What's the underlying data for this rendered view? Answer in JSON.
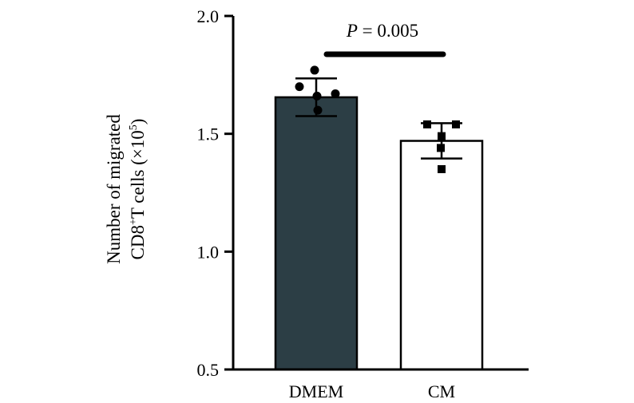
{
  "chart_data": {
    "type": "bar",
    "categories": [
      "DMEM",
      "CM"
    ],
    "values": [
      1.655,
      1.47
    ],
    "error": [
      0.08,
      0.075
    ],
    "points": [
      [
        1.77,
        1.7,
        1.67,
        1.66,
        1.6
      ],
      [
        1.54,
        1.54,
        1.49,
        1.44,
        1.35
      ]
    ],
    "point_markers": [
      "circle",
      "square"
    ],
    "colors": {
      "bar_fill": [
        "#2c3e45",
        "#ffffff"
      ],
      "bar_stroke": "#000000",
      "marker": "#000000"
    },
    "ylabel_line1": "Number of migrated",
    "ylabel_line2_a": "CD8",
    "ylabel_line2_sup": "+",
    "ylabel_line2_b": "T cells (×10",
    "ylabel_line2_exp": "5",
    "ylabel_line2_c": ")",
    "yticks": [
      "0.5",
      "1.0",
      "1.5",
      "2.0"
    ],
    "ylim": [
      0.5,
      2.0
    ],
    "annotation": {
      "p_italic": "P",
      "p_value": " = 0.005"
    }
  }
}
